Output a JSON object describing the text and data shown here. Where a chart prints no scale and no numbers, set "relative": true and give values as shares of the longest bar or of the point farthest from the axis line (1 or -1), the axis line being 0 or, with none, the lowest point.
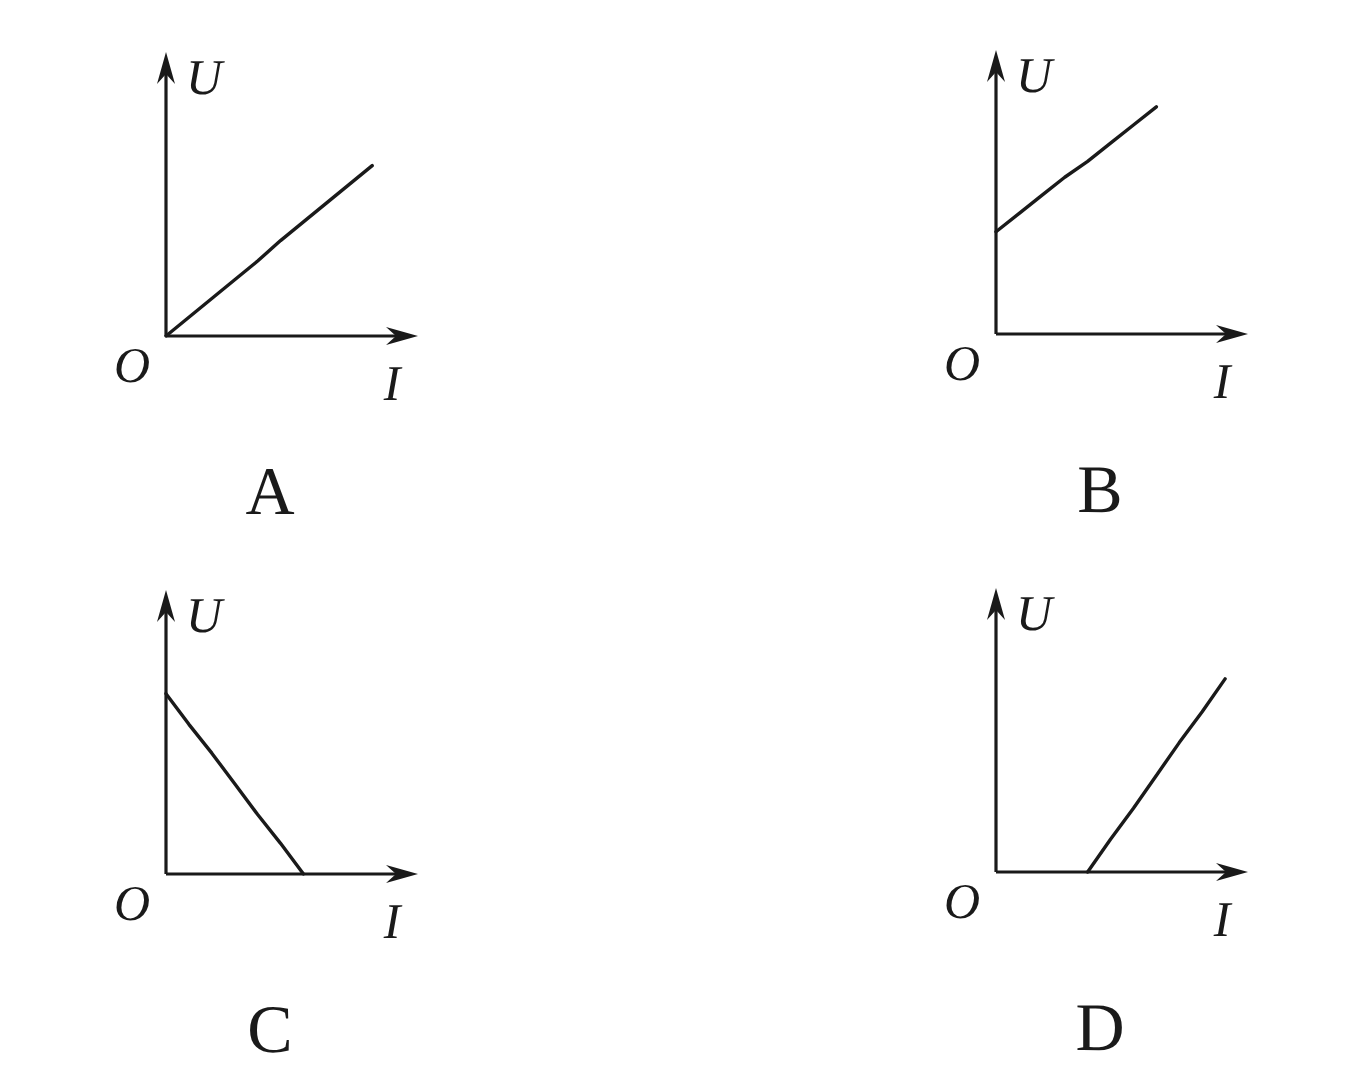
{
  "chart_data": [
    {
      "type": "line",
      "title": "A",
      "xlabel": "I",
      "ylabel": "U",
      "annotations": [
        "O"
      ],
      "relative": true,
      "color": "#1a1a1a",
      "categories": [
        null,
        null,
        null,
        null,
        null,
        null,
        null,
        null,
        null,
        null,
        null
      ],
      "values": [
        0,
        0.11,
        0.22,
        0.33,
        0.44,
        0.56,
        0.67,
        0.78,
        0.89,
        1,
        null
      ]
    },
    {
      "type": "line",
      "title": "B",
      "xlabel": "I",
      "ylabel": "U",
      "annotations": [
        "O"
      ],
      "relative": true,
      "color": "#1a1a1a",
      "categories": [
        null,
        null,
        null,
        null,
        null,
        null,
        null,
        null,
        null,
        null,
        null
      ],
      "values": [
        0.45,
        0.53,
        0.61,
        0.69,
        0.76,
        0.84,
        0.92,
        1,
        null,
        null,
        null
      ]
    },
    {
      "type": "line",
      "title": "C",
      "xlabel": "I",
      "ylabel": "U",
      "annotations": [
        "O"
      ],
      "relative": true,
      "color": "#1a1a1a",
      "categories": [
        null,
        null,
        null,
        null,
        null,
        null,
        null,
        null,
        null,
        null,
        null
      ],
      "values": [
        1,
        0.83,
        0.67,
        0.5,
        0.33,
        0.17,
        0,
        null,
        null,
        null,
        null
      ]
    },
    {
      "type": "line",
      "title": "D",
      "xlabel": "I",
      "ylabel": "U",
      "annotations": [
        "O"
      ],
      "relative": true,
      "color": "#1a1a1a",
      "categories": [
        null,
        null,
        null,
        null,
        null,
        null,
        null,
        null,
        null,
        null,
        null
      ],
      "values": [
        null,
        null,
        null,
        null,
        0,
        0.17,
        0.33,
        0.5,
        0.67,
        0.83,
        1
      ]
    }
  ]
}
